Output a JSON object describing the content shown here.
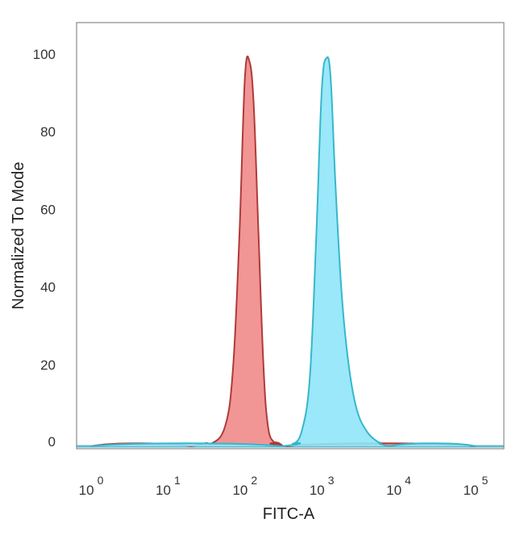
{
  "chart_data": {
    "type": "area",
    "title": "",
    "xlabel": "FITC-A",
    "ylabel": "Normalized To Mode",
    "x_scale": "log",
    "xlim": [
      1,
      100000
    ],
    "ylim": [
      0,
      100
    ],
    "y_ticks": [
      {
        "value": 0,
        "label": "0"
      },
      {
        "value": 20,
        "label": "20"
      },
      {
        "value": 40,
        "label": "40"
      },
      {
        "value": 60,
        "label": "60"
      },
      {
        "value": 80,
        "label": "80"
      },
      {
        "value": 100,
        "label": "100"
      }
    ],
    "x_ticks": [
      {
        "value": 1,
        "base": "10",
        "exp": "0"
      },
      {
        "value": 10,
        "base": "10",
        "exp": "1"
      },
      {
        "value": 100,
        "base": "10",
        "exp": "2"
      },
      {
        "value": 1000,
        "base": "10",
        "exp": "3"
      },
      {
        "value": 10000,
        "base": "10",
        "exp": "4"
      },
      {
        "value": 100000,
        "base": "10",
        "exp": "5"
      }
    ],
    "grid": false,
    "legend": "none",
    "series": [
      {
        "color": "#f08a8a",
        "edge_color": "#b03a3a",
        "x": [
          1,
          20,
          35,
          55,
          70,
          85,
          100,
          115,
          130,
          150,
          175,
          200,
          240,
          300,
          350,
          100000
        ],
        "y": [
          0,
          0,
          0.5,
          5,
          20,
          55,
          95,
          99,
          88,
          55,
          20,
          5,
          1,
          0.2,
          0,
          0
        ]
      },
      {
        "color": "#8fe6f8",
        "edge_color": "#36b7cc",
        "x": [
          1,
          300,
          420,
          550,
          700,
          850,
          1000,
          1150,
          1300,
          1500,
          1800,
          2200,
          2800,
          3800,
          5500,
          7500,
          100000
        ],
        "y": [
          0,
          0,
          0.5,
          4,
          18,
          55,
          92,
          100,
          95,
          68,
          40,
          22,
          10,
          4,
          1,
          0,
          0
        ]
      }
    ],
    "baseline_color": "#5fb8cc"
  }
}
